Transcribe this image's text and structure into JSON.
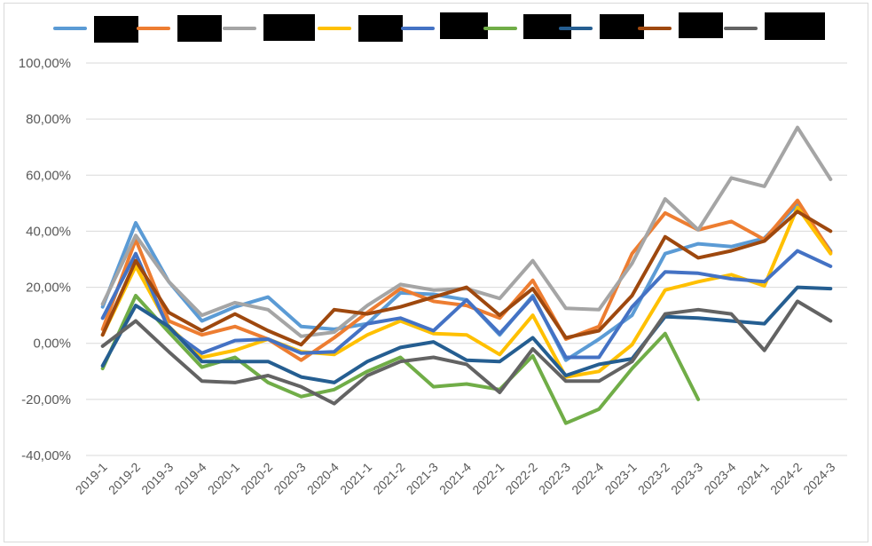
{
  "chart_data": {
    "type": "line",
    "title": "",
    "xlabel": "",
    "ylabel": "",
    "ylim": [
      -40,
      100
    ],
    "ytick_step": 20,
    "ytick_labels": [
      "-40,00%",
      "-20,00%",
      "0,00%",
      "20,00%",
      "40,00%",
      "60,00%",
      "80,00%",
      "100,00%"
    ],
    "grid": true,
    "legend_position": "top",
    "legend_labels_redacted": true,
    "categories": [
      "2019-1",
      "2019-2",
      "2019-3",
      "2019-4",
      "2020-1",
      "2020-2",
      "2020-3",
      "2020-4",
      "2021-1",
      "2021-2",
      "2021-3",
      "2021-4",
      "2022-1",
      "2022-2",
      "2022-3",
      "2022-4",
      "2023-1",
      "2023-2",
      "2023-3",
      "2023-4",
      "2024-1",
      "2024-2",
      "2024-3"
    ],
    "series": [
      {
        "color": "#5b9bd5",
        "values": [
          13,
          43,
          22,
          8,
          13,
          16.5,
          6,
          5,
          7,
          18,
          17.5,
          15.5,
          3,
          17,
          -6,
          1.5,
          10,
          32,
          35.5,
          34.5,
          37.5,
          49.5,
          33
        ]
      },
      {
        "color": "#ed7d31",
        "values": [
          5,
          37,
          8,
          3,
          6,
          1.5,
          -6,
          2,
          11,
          19.5,
          15,
          13.5,
          9,
          22.5,
          1.5,
          6,
          32,
          46.5,
          40.5,
          43.5,
          37,
          51,
          32.5
        ]
      },
      {
        "color": "#a5a5a5",
        "values": [
          14,
          38.5,
          22,
          10,
          14.5,
          12,
          2.5,
          4,
          13.5,
          21,
          19,
          19.5,
          16,
          29.5,
          12.5,
          12,
          28.5,
          51.5,
          40.5,
          59,
          56,
          77,
          58.5
        ]
      },
      {
        "color": "#ffc000",
        "values": [
          3,
          27.5,
          6,
          -5,
          -2.5,
          1.5,
          -3,
          -4,
          3,
          8,
          3.5,
          3,
          -4,
          10,
          -12,
          -10,
          -0.5,
          19,
          22,
          24.5,
          20.5,
          48.5,
          32
        ]
      },
      {
        "color": "#4472c4",
        "values": [
          9,
          32,
          5,
          -3.5,
          1,
          1.5,
          -3.5,
          -3,
          7,
          9,
          4.5,
          15.5,
          3.5,
          16.5,
          -5,
          -5,
          13,
          25.5,
          25,
          23,
          22,
          33,
          27.5
        ]
      },
      {
        "color": "#70ad47",
        "values": [
          -9,
          17,
          4,
          -8.5,
          -5,
          -14,
          -19,
          -16.5,
          -10,
          -5,
          -15.5,
          -14.5,
          -16.5,
          -4.5,
          -28.5,
          -23.5,
          -9,
          3.5,
          -20,
          null,
          null,
          null,
          null
        ]
      },
      {
        "color": "#255e91",
        "values": [
          -8,
          13.5,
          6,
          -6.5,
          -6.5,
          -6.5,
          -12,
          -14,
          -6.5,
          -1.5,
          0.5,
          -6,
          -6.5,
          2,
          -11.5,
          -7.5,
          -5.5,
          9.5,
          9,
          8,
          7,
          20,
          19.5
        ]
      },
      {
        "color": "#9e480e",
        "values": [
          3,
          29.5,
          11,
          4.5,
          10.5,
          4.5,
          -0.5,
          12,
          10.5,
          13,
          16.5,
          20,
          10,
          19.5,
          2,
          4.5,
          17,
          38,
          30.5,
          33,
          36.5,
          47,
          40
        ]
      },
      {
        "color": "#636363",
        "values": [
          -1,
          8,
          -3,
          -13.5,
          -14,
          -11.5,
          -15.5,
          -21.5,
          -11.5,
          -6.5,
          -5,
          -7.5,
          -17.5,
          -2,
          -13.5,
          -13.5,
          -6.5,
          10.5,
          12,
          10.5,
          -2.5,
          15,
          8
        ]
      }
    ]
  }
}
